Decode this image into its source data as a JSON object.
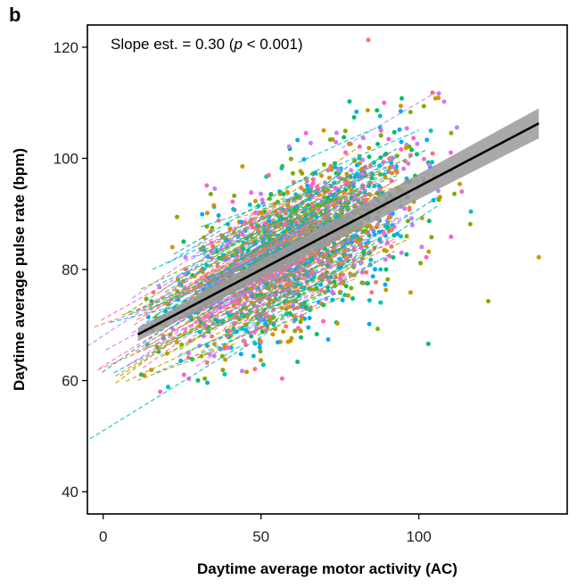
{
  "panel_label": "b",
  "chart_data": {
    "type": "scatter",
    "xlabel": "Daytime average motor activity (AC)",
    "ylabel": "Daytime average pulse rate (bpm)",
    "xlim": [
      -5,
      147
    ],
    "ylim": [
      36,
      124
    ],
    "x_ticks": [
      0,
      50,
      100
    ],
    "y_ticks": [
      40,
      60,
      80,
      100,
      120
    ],
    "x_tick_labels": [
      "0",
      "50",
      "100"
    ],
    "y_tick_labels": [
      "40",
      "60",
      "80",
      "100",
      "120"
    ],
    "grid": false,
    "annotation": {
      "prefix": "Slope est. = 0.30 (",
      "italic": "p",
      "suffix": " < 0.001)"
    },
    "regression": {
      "slope": 0.3,
      "x_start": 11,
      "y_start": 68.3,
      "x_end": 138,
      "y_end": 106.3,
      "band_halfwidth_start": 1.2,
      "band_halfwidth_end": 2.7,
      "line_color": "#000000",
      "band_color": "#9a9a9a"
    },
    "point_colors": [
      "#F8766D",
      "#CD9600",
      "#7CAE00",
      "#00BE67",
      "#00BFC4",
      "#00A9FF",
      "#C77CFF",
      "#FF61CC"
    ],
    "notable_points": [
      {
        "x": 84,
        "y": 121.3
      },
      {
        "x": 138,
        "y": 82.2
      },
      {
        "x": 122,
        "y": 74.3
      },
      {
        "x": 103,
        "y": 66.6
      },
      {
        "x": 14,
        "y": 66.5
      },
      {
        "x": 33,
        "y": 59.6
      },
      {
        "x": 108,
        "y": 110.2
      },
      {
        "x": 89,
        "y": 110.0
      }
    ]
  }
}
